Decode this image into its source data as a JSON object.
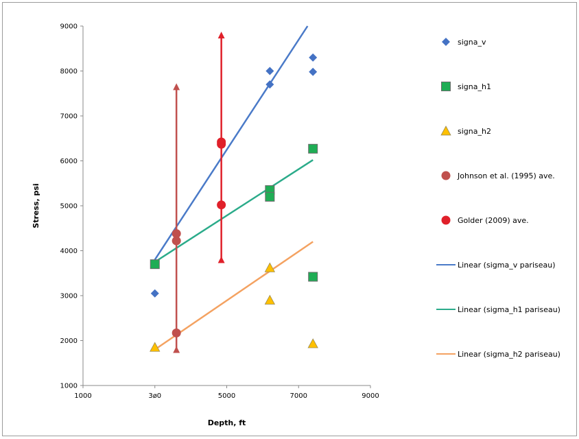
{
  "chart_data": {
    "type": "scatter",
    "xlabel": "Depth, ft",
    "ylabel": "Stress, psi",
    "xlim": [
      1000,
      9000
    ],
    "ylim": [
      1000,
      9000
    ],
    "x_ticks": [
      1000,
      3000,
      5000,
      7000,
      9000
    ],
    "x_tick_labels": [
      "1000",
      "3ø0",
      "5000",
      "7000",
      "9000"
    ],
    "y_ticks": [
      1000,
      2000,
      3000,
      4000,
      5000,
      6000,
      7000,
      8000,
      9000
    ],
    "y_tick_labels": [
      "1000",
      "2000",
      "3000",
      "4000",
      "5000",
      "6000",
      "7000",
      "8000",
      "9000"
    ],
    "grid": false,
    "legend_position": "right",
    "series": [
      {
        "name": "signa_v",
        "marker": "diamond",
        "color": "#4472c4",
        "points": [
          [
            3000,
            3050
          ],
          [
            6200,
            8000
          ],
          [
            6200,
            7700
          ],
          [
            7400,
            8300
          ],
          [
            7400,
            7980
          ]
        ]
      },
      {
        "name": "signa_h1",
        "marker": "square",
        "color": "#1fad55",
        "points": [
          [
            3000,
            3700
          ],
          [
            6200,
            5350
          ],
          [
            6200,
            5200
          ],
          [
            7400,
            6270
          ],
          [
            7400,
            3420
          ]
        ]
      },
      {
        "name": "signa_h2",
        "marker": "triangle",
        "color": "#ffc000",
        "points": [
          [
            3000,
            1850
          ],
          [
            6200,
            3620
          ],
          [
            6200,
            2900
          ],
          [
            7400,
            1930
          ]
        ]
      },
      {
        "name": "Johnson et al. (1995) ave.",
        "marker": "circle",
        "color": "#c0504d",
        "points": [
          [
            3600,
            4380
          ],
          [
            3600,
            4220
          ],
          [
            3600,
            2170
          ]
        ]
      },
      {
        "name": "Golder (2009) ave.",
        "marker": "circle",
        "color": "#e0202a",
        "points": [
          [
            4850,
            6420
          ],
          [
            4850,
            6370
          ],
          [
            4850,
            5020
          ]
        ]
      }
    ],
    "trendlines": [
      {
        "name": "Linear (sigma_v pariseau)",
        "color": "#4a7ac8",
        "from": [
          3000,
          3800
        ],
        "to": [
          7250,
          9000
        ]
      },
      {
        "name": "Linear (sigma_h1 pariseau)",
        "color": "#2bab8a",
        "from": [
          3000,
          3750
        ],
        "to": [
          7400,
          6020
        ]
      },
      {
        "name": "Linear (sigma_h2 pariseau)",
        "color": "#f4a261",
        "from": [
          3000,
          1800
        ],
        "to": [
          7400,
          4200
        ]
      }
    ],
    "range_arrows": [
      {
        "color": "#c0504d",
        "x": 3600,
        "y_from": 1800,
        "y_to": 7650
      },
      {
        "color": "#e0202a",
        "x": 4850,
        "y_from": 3800,
        "y_to": 8800
      }
    ]
  }
}
